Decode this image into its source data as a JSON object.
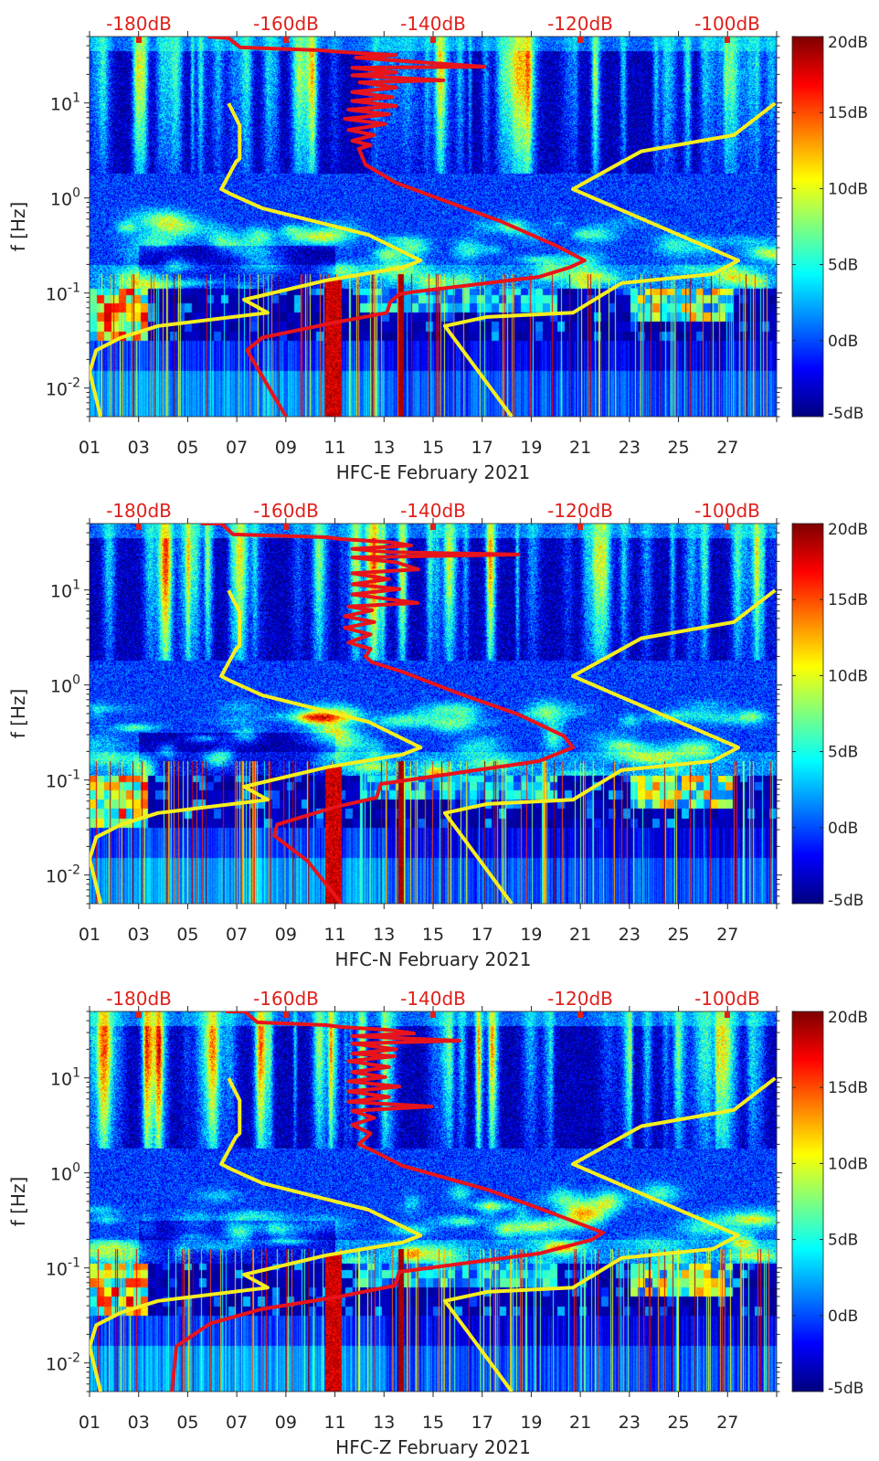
{
  "axes": {
    "xlim": [
      1,
      29
    ],
    "ylim": [
      0.005,
      50
    ],
    "yscale": "log",
    "ylabel": "f [Hz]",
    "xtick_values": [
      1,
      3,
      5,
      7,
      9,
      11,
      13,
      15,
      17,
      19,
      21,
      23,
      25,
      27
    ],
    "xtick_labels": [
      "01",
      "03",
      "05",
      "07",
      "09",
      "11",
      "13",
      "15",
      "17",
      "19",
      "21",
      "23",
      "25",
      "27"
    ],
    "ytick_values": [
      0.01,
      0.1,
      1,
      10
    ],
    "ytick_labels": [
      "10^-2",
      "10^-1",
      "10^0",
      "10^1"
    ],
    "top_axis": {
      "unit": "dB",
      "values": [
        -180,
        -160,
        -140,
        -120,
        -100
      ],
      "labels": [
        "-180dB",
        "-160dB",
        "-140dB",
        "-120dB",
        "-100dB"
      ],
      "color": "#e0201b"
    },
    "colorbar": {
      "colormap": "jet",
      "range": [
        -5,
        20
      ],
      "values": [
        20,
        15,
        10,
        5,
        0,
        -5
      ],
      "labels": [
        "20dB",
        "15dB",
        "10dB",
        "5dB",
        "0dB",
        "-5dB"
      ]
    }
  },
  "chart_data": [
    {
      "type": "heatmap",
      "xlabel": "HFC-E February 2021",
      "series": [
        {
          "name": "low-noise-model",
          "color": "#f5ee1f",
          "points": [
            [
              -167.8,
              9.9
            ],
            [
              -166.3,
              5.8
            ],
            [
              -166.3,
              2.6
            ],
            [
              -166.8,
              2.4
            ],
            [
              -168.8,
              1.24
            ],
            [
              -167.5,
              1.1
            ],
            [
              -163.2,
              0.78
            ],
            [
              -148.8,
              0.41
            ],
            [
              -141.7,
              0.22
            ],
            [
              -144.2,
              0.185
            ],
            [
              -154.5,
              0.136
            ],
            [
              -165.7,
              0.085
            ],
            [
              -162.5,
              0.062
            ],
            [
              -177.4,
              0.045
            ],
            [
              -182.4,
              0.034
            ],
            [
              -185.8,
              0.025
            ],
            [
              -186.7,
              0.0148
            ],
            [
              -185.2,
              0.005
            ]
          ]
        },
        {
          "name": "high-noise-model",
          "color": "#f5ee1f",
          "points": [
            [
              -93.5,
              9.9
            ],
            [
              -99.1,
              4.6
            ],
            [
              -111.7,
              3.1
            ],
            [
              -121.0,
              1.24
            ],
            [
              -98.5,
              0.22
            ],
            [
              -102.0,
              0.158
            ],
            [
              -114.4,
              0.127
            ],
            [
              -121.0,
              0.062
            ],
            [
              -132.7,
              0.056
            ],
            [
              -138.4,
              0.045
            ],
            [
              -129.3,
              0.005
            ]
          ]
        },
        {
          "name": "station-psd",
          "color": "#e8141b",
          "points": [
            [
              -170.7,
              50
            ],
            [
              -167.8,
              48
            ],
            [
              -166.2,
              38.4
            ],
            [
              -155.4,
              35.9
            ],
            [
              -152.3,
              34.3
            ],
            [
              -145.1,
              32
            ],
            [
              -150.5,
              30
            ],
            [
              -133.0,
              24.1
            ],
            [
              -151,
              23.5
            ],
            [
              -145,
              21
            ],
            [
              -151,
              19.5
            ],
            [
              -138.6,
              17.3
            ],
            [
              -150,
              16.5
            ],
            [
              -145,
              14.5
            ],
            [
              -151,
              13
            ],
            [
              -145.5,
              11.5
            ],
            [
              -151,
              10.5
            ],
            [
              -145,
              9.3
            ],
            [
              -151.5,
              8.5
            ],
            [
              -146,
              7.6
            ],
            [
              -152,
              6.8
            ],
            [
              -146.5,
              6
            ],
            [
              -151.5,
              5.2
            ],
            [
              -148,
              4.6
            ],
            [
              -151,
              4
            ],
            [
              -148.5,
              3.6
            ],
            [
              -150.1,
              3.3
            ],
            [
              -149.2,
              2.25
            ],
            [
              -145.1,
              1.45
            ],
            [
              -139.3,
              0.99
            ],
            [
              -130.6,
              0.56
            ],
            [
              -123.1,
              0.31
            ],
            [
              -119.4,
              0.22
            ],
            [
              -121.5,
              0.185
            ],
            [
              -125.6,
              0.148
            ],
            [
              -143.0,
              0.102
            ],
            [
              -144.6,
              0.097
            ],
            [
              -145.8,
              0.081
            ],
            [
              -146.3,
              0.062
            ],
            [
              -153.3,
              0.049
            ],
            [
              -163.2,
              0.034
            ],
            [
              -165.3,
              0.025
            ],
            [
              -160.0,
              0.005
            ]
          ]
        }
      ]
    },
    {
      "type": "heatmap",
      "xlabel": "HFC-N February 2021",
      "series": [
        {
          "name": "low-noise-model",
          "color": "#f5ee1f",
          "points": [
            [
              -167.8,
              9.9
            ],
            [
              -166.3,
              5.8
            ],
            [
              -166.3,
              2.6
            ],
            [
              -166.8,
              2.4
            ],
            [
              -168.8,
              1.24
            ],
            [
              -167.5,
              1.1
            ],
            [
              -163.2,
              0.78
            ],
            [
              -148.8,
              0.41
            ],
            [
              -141.7,
              0.22
            ],
            [
              -144.2,
              0.185
            ],
            [
              -154.5,
              0.136
            ],
            [
              -165.7,
              0.085
            ],
            [
              -162.5,
              0.062
            ],
            [
              -177.4,
              0.045
            ],
            [
              -182.4,
              0.034
            ],
            [
              -185.8,
              0.025
            ],
            [
              -186.7,
              0.0148
            ],
            [
              -185.2,
              0.005
            ]
          ]
        },
        {
          "name": "high-noise-model",
          "color": "#f5ee1f",
          "points": [
            [
              -93.5,
              9.9
            ],
            [
              -99.1,
              4.6
            ],
            [
              -111.7,
              3.1
            ],
            [
              -121.0,
              1.24
            ],
            [
              -98.5,
              0.22
            ],
            [
              -102.0,
              0.158
            ],
            [
              -114.4,
              0.127
            ],
            [
              -121.0,
              0.062
            ],
            [
              -132.7,
              0.056
            ],
            [
              -138.4,
              0.045
            ],
            [
              -129.3,
              0.005
            ]
          ]
        },
        {
          "name": "station-psd",
          "color": "#e8141b",
          "points": [
            [
              -171.6,
              50
            ],
            [
              -168.8,
              50
            ],
            [
              -167.2,
              38.4
            ],
            [
              -154.5,
              35.9
            ],
            [
              -152.5,
              34.3
            ],
            [
              -146,
              32
            ],
            [
              -143.0,
              29.4
            ],
            [
              -151,
              27
            ],
            [
              -146,
              25
            ],
            [
              -128.4,
              23.6
            ],
            [
              -151,
              22
            ],
            [
              -145,
              19.5
            ],
            [
              -142.0,
              16.5
            ],
            [
              -151,
              15
            ],
            [
              -146,
              13
            ],
            [
              -151,
              11.5
            ],
            [
              -144.6,
              10.2
            ],
            [
              -151,
              9
            ],
            [
              -146,
              8
            ],
            [
              -142.1,
              7.3
            ],
            [
              -151.5,
              6.7
            ],
            [
              -148.3,
              6.1
            ],
            [
              -152,
              5.3
            ],
            [
              -148,
              4.6
            ],
            [
              -152,
              4
            ],
            [
              -148.5,
              3.4
            ],
            [
              -151.5,
              2.8
            ],
            [
              -148.5,
              2.4
            ],
            [
              -149.2,
              2.0
            ],
            [
              -148.3,
              1.73
            ],
            [
              -144.2,
              1.38
            ],
            [
              -136.8,
              0.83
            ],
            [
              -128.4,
              0.49
            ],
            [
              -122.2,
              0.29
            ],
            [
              -121.0,
              0.22
            ],
            [
              -125.6,
              0.158
            ],
            [
              -147.1,
              0.091
            ],
            [
              -147.7,
              0.065
            ],
            [
              -153.3,
              0.052
            ],
            [
              -161.2,
              0.034
            ],
            [
              -161.6,
              0.026
            ],
            [
              -157.0,
              0.0139
            ],
            [
              -152.5,
              0.005
            ]
          ]
        }
      ]
    },
    {
      "type": "heatmap",
      "xlabel": "HFC-Z February 2021",
      "series": [
        {
          "name": "low-noise-model",
          "color": "#f5ee1f",
          "points": [
            [
              -167.8,
              9.9
            ],
            [
              -166.3,
              5.8
            ],
            [
              -166.3,
              2.6
            ],
            [
              -166.8,
              2.4
            ],
            [
              -168.8,
              1.24
            ],
            [
              -167.5,
              1.1
            ],
            [
              -163.2,
              0.78
            ],
            [
              -148.8,
              0.41
            ],
            [
              -141.7,
              0.22
            ],
            [
              -144.2,
              0.185
            ],
            [
              -154.5,
              0.136
            ],
            [
              -165.7,
              0.085
            ],
            [
              -162.5,
              0.062
            ],
            [
              -177.4,
              0.045
            ],
            [
              -182.4,
              0.034
            ],
            [
              -185.8,
              0.025
            ],
            [
              -186.7,
              0.0148
            ],
            [
              -185.2,
              0.005
            ]
          ]
        },
        {
          "name": "high-noise-model",
          "color": "#f5ee1f",
          "points": [
            [
              -93.5,
              9.9
            ],
            [
              -99.1,
              4.6
            ],
            [
              -111.7,
              3.1
            ],
            [
              -121.0,
              1.24
            ],
            [
              -98.5,
              0.22
            ],
            [
              -102.0,
              0.158
            ],
            [
              -114.4,
              0.127
            ],
            [
              -121.0,
              0.062
            ],
            [
              -132.7,
              0.056
            ],
            [
              -138.4,
              0.045
            ],
            [
              -129.3,
              0.005
            ]
          ]
        },
        {
          "name": "station-psd",
          "color": "#e8141b",
          "points": [
            [
              -168.2,
              50
            ],
            [
              -165.6,
              50
            ],
            [
              -163.9,
              38.4
            ],
            [
              -154.5,
              35.9
            ],
            [
              -152.5,
              34.3
            ],
            [
              -146,
              32
            ],
            [
              -142.6,
              29.4
            ],
            [
              -151,
              27.5
            ],
            [
              -136.4,
              24.6
            ],
            [
              -151,
              23
            ],
            [
              -145,
              20
            ],
            [
              -151,
              18
            ],
            [
              -145.2,
              16.9
            ],
            [
              -151.5,
              15
            ],
            [
              -146,
              13
            ],
            [
              -151,
              11.5
            ],
            [
              -146.5,
              10.2
            ],
            [
              -151.5,
              9.2
            ],
            [
              -144.6,
              8.1
            ],
            [
              -151.5,
              7.2
            ],
            [
              -146,
              6.3
            ],
            [
              -151.5,
              5.6
            ],
            [
              -140.2,
              5.0
            ],
            [
              -151,
              4.5
            ],
            [
              -148,
              3.8
            ],
            [
              -151,
              3.2
            ],
            [
              -148.5,
              2.6
            ],
            [
              -150.1,
              2.0
            ],
            [
              -148.3,
              1.73
            ],
            [
              -144.2,
              1.19
            ],
            [
              -132.7,
              0.67
            ],
            [
              -124.3,
              0.39
            ],
            [
              -116.9,
              0.235
            ],
            [
              -118.5,
              0.197
            ],
            [
              -125.6,
              0.142
            ],
            [
              -144.6,
              0.091
            ],
            [
              -145.2,
              0.065
            ],
            [
              -153.3,
              0.049
            ],
            [
              -163.2,
              0.037
            ],
            [
              -170.3,
              0.026
            ],
            [
              -174.9,
              0.015
            ],
            [
              -175.5,
              0.005
            ]
          ]
        }
      ]
    }
  ]
}
